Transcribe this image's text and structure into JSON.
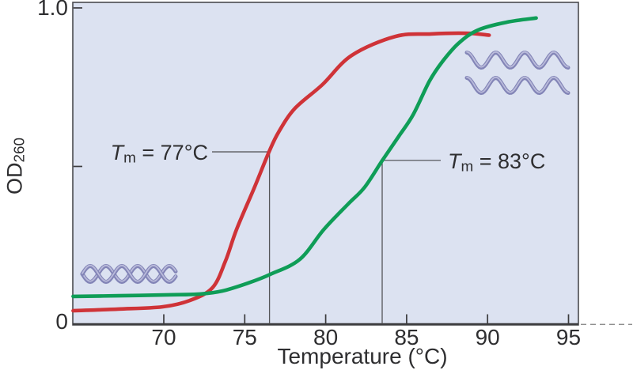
{
  "figure_kind": "DNA melting curve plot",
  "chart_data": {
    "type": "line",
    "title": "",
    "xlabel": "Temperature (°C)",
    "ylabel_base": "OD",
    "ylabel_sub": "260",
    "xlim": [
      64.4,
      95.6
    ],
    "ylim": [
      0,
      1.02
    ],
    "grid": false,
    "legend": "none",
    "x_ticks": [
      70,
      75,
      80,
      85,
      90,
      95
    ],
    "y_ticks": [
      {
        "od": 1.0,
        "label": "1.0",
        "mark": true
      },
      {
        "od": 0.5,
        "label": "",
        "mark": true
      },
      {
        "od": 0.0,
        "label": "0",
        "mark": false
      }
    ],
    "series": [
      {
        "name": "melting-curve-red-tm77",
        "color": "#cf3338",
        "points": [
          [
            64.4,
            0.045
          ],
          [
            67.2,
            0.05
          ],
          [
            69.9,
            0.057
          ],
          [
            71.6,
            0.077
          ],
          [
            73.0,
            0.117
          ],
          [
            73.8,
            0.2
          ],
          [
            74.5,
            0.302
          ],
          [
            75.6,
            0.434
          ],
          [
            76.5,
            0.546
          ],
          [
            77.1,
            0.609
          ],
          [
            78.1,
            0.683
          ],
          [
            79.8,
            0.758
          ],
          [
            81.6,
            0.85
          ],
          [
            84.3,
            0.91
          ],
          [
            86.5,
            0.918
          ],
          [
            88.7,
            0.92
          ],
          [
            90.1,
            0.914
          ]
        ]
      },
      {
        "name": "melting-curve-green-tm83",
        "color": "#0f9d57",
        "points": [
          [
            64.4,
            0.09
          ],
          [
            67.2,
            0.092
          ],
          [
            70.3,
            0.095
          ],
          [
            72.1,
            0.097
          ],
          [
            73.6,
            0.107
          ],
          [
            75.2,
            0.132
          ],
          [
            76.6,
            0.16
          ],
          [
            78.4,
            0.207
          ],
          [
            79.9,
            0.302
          ],
          [
            81.4,
            0.382
          ],
          [
            82.4,
            0.434
          ],
          [
            83.5,
            0.519
          ],
          [
            84.5,
            0.594
          ],
          [
            85.4,
            0.663
          ],
          [
            86.4,
            0.768
          ],
          [
            87.2,
            0.83
          ],
          [
            88.2,
            0.888
          ],
          [
            89.4,
            0.93
          ],
          [
            91.2,
            0.955
          ],
          [
            93.0,
            0.968
          ]
        ]
      },
      {
        "_comment_annotations": "drop-lines drawn at midpoint of each curve"
      }
    ],
    "annotations": [
      {
        "symbol": "T",
        "sub": "m",
        "rest": " = 77°C",
        "t": 76.53,
        "od": 0.546,
        "side": "left"
      },
      {
        "symbol": "T",
        "sub": "m",
        "rest": " = 83°C",
        "t": 83.49,
        "od": 0.519,
        "side": "right"
      }
    ]
  },
  "icons": {
    "duplex": "dna-double-helix-icon",
    "single_strands": "dna-single-strands-icon"
  },
  "colors": {
    "plot_bg": "#dce2f1",
    "red_curve": "#cf3338",
    "green_curve": "#0f9d57",
    "strand": "#8385b7",
    "strand_highlight": "#babbdb",
    "axis": "#3c3c3e",
    "annotation_line": "#55565a",
    "text": "#2e2e30"
  }
}
